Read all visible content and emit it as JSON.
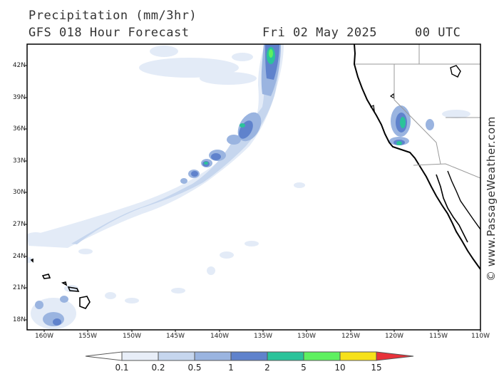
{
  "header": {
    "title": "Precipitation (mm/3hr)",
    "subtitle": "GFS 018 Hour Forecast",
    "date": "Fri 02 May 2025",
    "time": "00 UTC"
  },
  "credit": "© www.PassageWeather.com",
  "map": {
    "lat_labels": [
      "42N",
      "39N",
      "36N",
      "33N",
      "30N",
      "27N",
      "24N",
      "21N",
      "18N"
    ],
    "lon_labels": [
      "160W",
      "155W",
      "150W",
      "145W",
      "140W",
      "135W",
      "130W",
      "125W",
      "120W",
      "115W",
      "110W"
    ],
    "colors": {
      "land_outline": "#000000",
      "border": "#9a9a9a"
    }
  },
  "colorbar": {
    "labels": [
      "0.1",
      "0.2",
      "0.5",
      "1",
      "2",
      "5",
      "10",
      "15"
    ],
    "colors": [
      "#e8eef8",
      "#c6d6ee",
      "#9ab4e0",
      "#5f82cc",
      "#2bc39a",
      "#5ef060",
      "#f6e11a",
      "#f49a1e",
      "#e8323a"
    ]
  }
}
